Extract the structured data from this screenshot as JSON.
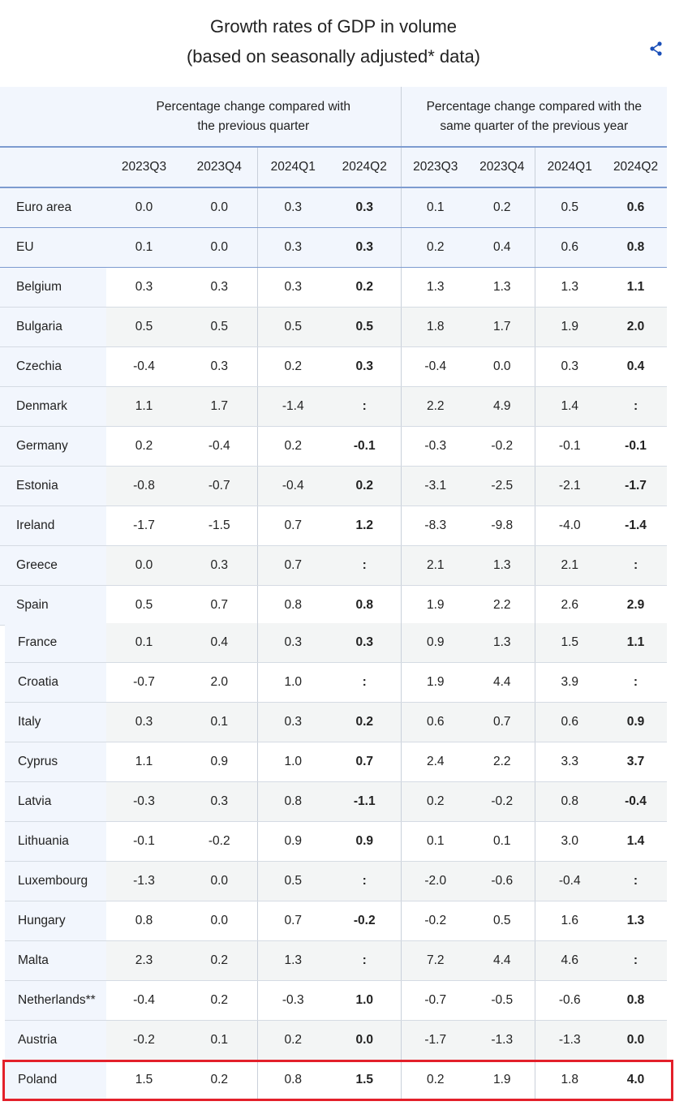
{
  "title": {
    "line1": "Growth rates of GDP in volume",
    "line2": "(based on seasonally adjusted* data)"
  },
  "share_icon": "share-icon",
  "accent_color": "#1a4fb8",
  "highlight_color": "#e3202a",
  "groups": [
    "Percentage change compared with the previous quarter",
    "Percentage change compared with the same quarter of the previous year"
  ],
  "quarters": [
    "2023Q3",
    "2023Q4",
    "2024Q1",
    "2024Q2",
    "2023Q3",
    "2023Q4",
    "2024Q1",
    "2024Q2"
  ],
  "rows": [
    {
      "country": "Euro area",
      "values": [
        "0.0",
        "0.0",
        "0.3",
        "0.3",
        "0.1",
        "0.2",
        "0.5",
        "0.6"
      ],
      "agg": true
    },
    {
      "country": "EU",
      "values": [
        "0.1",
        "0.0",
        "0.3",
        "0.3",
        "0.2",
        "0.4",
        "0.6",
        "0.8"
      ],
      "agg": true
    },
    {
      "country": "Belgium",
      "values": [
        "0.3",
        "0.3",
        "0.3",
        "0.2",
        "1.3",
        "1.3",
        "1.3",
        "1.1"
      ]
    },
    {
      "country": "Bulgaria",
      "values": [
        "0.5",
        "0.5",
        "0.5",
        "0.5",
        "1.8",
        "1.7",
        "1.9",
        "2.0"
      ]
    },
    {
      "country": "Czechia",
      "values": [
        "-0.4",
        "0.3",
        "0.2",
        "0.3",
        "-0.4",
        "0.0",
        "0.3",
        "0.4"
      ]
    },
    {
      "country": "Denmark",
      "values": [
        "1.1",
        "1.7",
        "-1.4",
        ":",
        "2.2",
        "4.9",
        "1.4",
        ":"
      ]
    },
    {
      "country": "Germany",
      "values": [
        "0.2",
        "-0.4",
        "0.2",
        "-0.1",
        "-0.3",
        "-0.2",
        "-0.1",
        "-0.1"
      ]
    },
    {
      "country": "Estonia",
      "values": [
        "-0.8",
        "-0.7",
        "-0.4",
        "0.2",
        "-3.1",
        "-2.5",
        "-2.1",
        "-1.7"
      ]
    },
    {
      "country": "Ireland",
      "values": [
        "-1.7",
        "-1.5",
        "0.7",
        "1.2",
        "-8.3",
        "-9.8",
        "-4.0",
        "-1.4"
      ]
    },
    {
      "country": "Greece",
      "values": [
        "0.0",
        "0.3",
        "0.7",
        ":",
        "2.1",
        "1.3",
        "2.1",
        ":"
      ]
    },
    {
      "country": "Spain",
      "values": [
        "0.5",
        "0.7",
        "0.8",
        "0.8",
        "1.9",
        "2.2",
        "2.6",
        "2.9"
      ]
    },
    {
      "country": "France",
      "values": [
        "0.1",
        "0.4",
        "0.3",
        "0.3",
        "0.9",
        "1.3",
        "1.5",
        "1.1"
      ]
    },
    {
      "country": "Croatia",
      "values": [
        "-0.7",
        "2.0",
        "1.0",
        ":",
        "1.9",
        "4.4",
        "3.9",
        ":"
      ]
    },
    {
      "country": "Italy",
      "values": [
        "0.3",
        "0.1",
        "0.3",
        "0.2",
        "0.6",
        "0.7",
        "0.6",
        "0.9"
      ]
    },
    {
      "country": "Cyprus",
      "values": [
        "1.1",
        "0.9",
        "1.0",
        "0.7",
        "2.4",
        "2.2",
        "3.3",
        "3.7"
      ]
    },
    {
      "country": "Latvia",
      "values": [
        "-0.3",
        "0.3",
        "0.8",
        "-1.1",
        "0.2",
        "-0.2",
        "0.8",
        "-0.4"
      ]
    },
    {
      "country": "Lithuania",
      "values": [
        "-0.1",
        "-0.2",
        "0.9",
        "0.9",
        "0.1",
        "0.1",
        "3.0",
        "1.4"
      ]
    },
    {
      "country": "Luxembourg",
      "values": [
        "-1.3",
        "0.0",
        "0.5",
        ":",
        "-2.0",
        "-0.6",
        "-0.4",
        ":"
      ]
    },
    {
      "country": "Hungary",
      "values": [
        "0.8",
        "0.0",
        "0.7",
        "-0.2",
        "-0.2",
        "0.5",
        "1.6",
        "1.3"
      ]
    },
    {
      "country": "Malta",
      "values": [
        "2.3",
        "0.2",
        "1.3",
        ":",
        "7.2",
        "4.4",
        "4.6",
        ":"
      ]
    },
    {
      "country": "Netherlands**",
      "values": [
        "-0.4",
        "0.2",
        "-0.3",
        "1.0",
        "-0.7",
        "-0.5",
        "-0.6",
        "0.8"
      ]
    },
    {
      "country": "Austria",
      "values": [
        "-0.2",
        "0.1",
        "0.2",
        "0.0",
        "-1.7",
        "-1.3",
        "-1.3",
        "0.0"
      ]
    },
    {
      "country": "Poland",
      "values": [
        "1.5",
        "0.2",
        "0.8",
        "1.5",
        "0.2",
        "1.9",
        "1.8",
        "4.0"
      ],
      "highlighted": true
    }
  ]
}
